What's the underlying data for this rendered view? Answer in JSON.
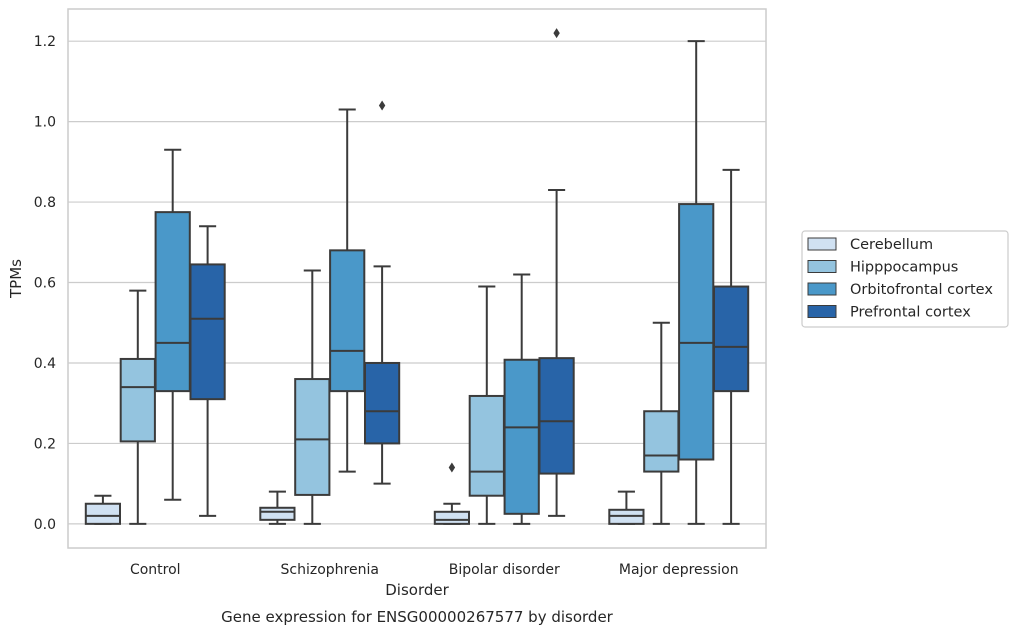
{
  "chart_data": {
    "type": "boxplot",
    "title": "Gene expression for ENSG00000267577 by disorder",
    "xlabel": "Disorder",
    "ylabel": "TPMs",
    "ylim": [
      -0.06,
      1.28
    ],
    "yticks": [
      "0.0",
      "0.2",
      "0.4",
      "0.6",
      "0.8",
      "1.0",
      "1.2"
    ],
    "ytick_values": [
      0.0,
      0.2,
      0.4,
      0.6,
      0.8,
      1.0,
      1.2
    ],
    "grid": "horizontal",
    "legend_position": "right",
    "categories": [
      "Control",
      "Schizophrenia",
      "Bipolar disorder",
      "Major depression"
    ],
    "series": [
      {
        "name": "Cerebellum",
        "color": "#d0e1f2",
        "boxes": [
          {
            "whislo": 0.0,
            "q1": 0.0,
            "med": 0.02,
            "q3": 0.05,
            "whishi": 0.07,
            "fliers": []
          },
          {
            "whislo": 0.0,
            "q1": 0.01,
            "med": 0.03,
            "q3": 0.04,
            "whishi": 0.08,
            "fliers": []
          },
          {
            "whislo": 0.0,
            "q1": 0.0,
            "med": 0.01,
            "q3": 0.03,
            "whishi": 0.05,
            "fliers": [
              0.14
            ]
          },
          {
            "whislo": 0.0,
            "q1": 0.0,
            "med": 0.02,
            "q3": 0.035,
            "whishi": 0.08,
            "fliers": []
          }
        ]
      },
      {
        "name": "Hipppocampus",
        "color": "#94c4df",
        "boxes": [
          {
            "whislo": 0.0,
            "q1": 0.205,
            "med": 0.34,
            "q3": 0.41,
            "whishi": 0.58,
            "fliers": []
          },
          {
            "whislo": 0.0,
            "q1": 0.072,
            "med": 0.21,
            "q3": 0.36,
            "whishi": 0.63,
            "fliers": []
          },
          {
            "whislo": 0.0,
            "q1": 0.07,
            "med": 0.13,
            "q3": 0.318,
            "whishi": 0.59,
            "fliers": []
          },
          {
            "whislo": 0.0,
            "q1": 0.13,
            "med": 0.17,
            "q3": 0.28,
            "whishi": 0.5,
            "fliers": []
          }
        ]
      },
      {
        "name": "Orbitofrontal cortex",
        "color": "#4a98c9",
        "boxes": [
          {
            "whislo": 0.06,
            "q1": 0.33,
            "med": 0.45,
            "q3": 0.775,
            "whishi": 0.93,
            "fliers": []
          },
          {
            "whislo": 0.13,
            "q1": 0.33,
            "med": 0.43,
            "q3": 0.68,
            "whishi": 1.03,
            "fliers": []
          },
          {
            "whislo": 0.0,
            "q1": 0.025,
            "med": 0.24,
            "q3": 0.408,
            "whishi": 0.62,
            "fliers": []
          },
          {
            "whislo": 0.0,
            "q1": 0.16,
            "med": 0.45,
            "q3": 0.795,
            "whishi": 1.2,
            "fliers": []
          }
        ]
      },
      {
        "name": "Prefrontal cortex",
        "color": "#2864a8",
        "boxes": [
          {
            "whislo": 0.02,
            "q1": 0.31,
            "med": 0.51,
            "q3": 0.645,
            "whishi": 0.74,
            "fliers": []
          },
          {
            "whislo": 0.1,
            "q1": 0.2,
            "med": 0.28,
            "q3": 0.4,
            "whishi": 0.64,
            "fliers": [
              1.04
            ]
          },
          {
            "whislo": 0.02,
            "q1": 0.125,
            "med": 0.255,
            "q3": 0.412,
            "whishi": 0.83,
            "fliers": [
              1.22
            ]
          },
          {
            "whislo": 0.0,
            "q1": 0.33,
            "med": 0.44,
            "q3": 0.59,
            "whishi": 0.88,
            "fliers": []
          }
        ]
      }
    ]
  },
  "colors": {
    "grid": "#cccccc",
    "frame": "#cccccc",
    "box_edge": "#3b3b3b",
    "text": "#262626"
  }
}
